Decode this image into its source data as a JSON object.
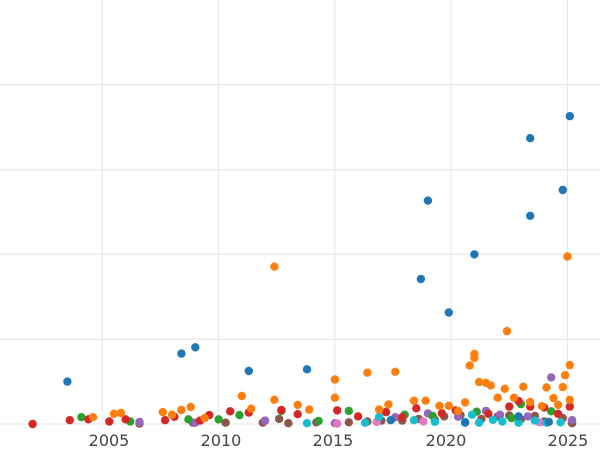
{
  "chart_data": {
    "type": "scatter",
    "title": "",
    "xlabel": "",
    "ylabel": "",
    "xlim": [
      2000.6,
      2026.4
    ],
    "ylim": [
      0,
      100
    ],
    "grid": true,
    "x_ticks": [
      2005,
      2010,
      2015,
      2020,
      2025
    ],
    "x_tick_labels": [
      "2005",
      "2010",
      "2015",
      "2020",
      "2025"
    ],
    "y_grid": [
      0,
      20,
      40,
      60,
      80
    ],
    "colors": {
      "blue": "#1f77b4",
      "orange": "#ff7f0e",
      "green": "#2ca02c",
      "red": "#d62728",
      "purple": "#9467bd",
      "brown": "#8c564b",
      "pink": "#e377c2",
      "cyan": "#17becf",
      "grid": "#e5e5e5",
      "axis_text": "#444444"
    },
    "series": [
      {
        "color_key": "blue",
        "points": [
          [
            2003.5,
            10.0
          ],
          [
            2008.4,
            16.6
          ],
          [
            2009.0,
            18.1
          ],
          [
            2011.3,
            12.5
          ],
          [
            2013.8,
            12.9
          ],
          [
            2018.7,
            34.2
          ],
          [
            2019.0,
            52.7
          ],
          [
            2019.9,
            26.3
          ],
          [
            2021.0,
            40.0
          ],
          [
            2023.4,
            49.1
          ],
          [
            2023.4,
            67.4
          ],
          [
            2024.8,
            55.2
          ],
          [
            2025.1,
            72.6
          ],
          [
            2024.2,
            0.5
          ],
          [
            2022.9,
            1.8
          ],
          [
            2020.6,
            0.3
          ],
          [
            2017.4,
            0.9
          ]
        ]
      },
      {
        "color_key": "orange",
        "points": [
          [
            2012.4,
            37.1
          ],
          [
            2025.0,
            39.5
          ],
          [
            2022.4,
            21.9
          ],
          [
            2021.0,
            16.5
          ],
          [
            2021.0,
            15.6
          ],
          [
            2020.8,
            13.8
          ],
          [
            2025.1,
            13.9
          ],
          [
            2024.9,
            11.5
          ],
          [
            2016.4,
            12.1
          ],
          [
            2017.6,
            12.3
          ],
          [
            2015.0,
            10.5
          ],
          [
            2011.0,
            6.6
          ],
          [
            2012.4,
            5.7
          ],
          [
            2015.0,
            6.2
          ],
          [
            2004.6,
            1.6
          ],
          [
            2005.5,
            2.4
          ],
          [
            2005.8,
            2.6
          ],
          [
            2007.6,
            2.8
          ],
          [
            2008.0,
            2.2
          ],
          [
            2008.4,
            3.3
          ],
          [
            2008.8,
            4.0
          ],
          [
            2009.4,
            1.4
          ],
          [
            2011.4,
            3.6
          ],
          [
            2013.4,
            4.5
          ],
          [
            2013.9,
            3.4
          ],
          [
            2016.9,
            3.4
          ],
          [
            2017.3,
            4.6
          ],
          [
            2018.4,
            5.5
          ],
          [
            2018.9,
            5.5
          ],
          [
            2019.5,
            4.3
          ],
          [
            2020.6,
            5.1
          ],
          [
            2021.2,
            9.9
          ],
          [
            2021.5,
            9.7
          ],
          [
            2021.7,
            9.1
          ],
          [
            2022.0,
            6.2
          ],
          [
            2022.3,
            8.3
          ],
          [
            2022.7,
            6.2
          ],
          [
            2023.1,
            8.8
          ],
          [
            2023.4,
            5.2
          ],
          [
            2023.9,
            4.2
          ],
          [
            2024.1,
            8.6
          ],
          [
            2024.4,
            6.1
          ],
          [
            2024.8,
            8.7
          ],
          [
            2025.1,
            5.7
          ],
          [
            2024.6,
            4.5
          ],
          [
            2020.3,
            3.1
          ],
          [
            2019.9,
            4.3
          ]
        ]
      },
      {
        "color_key": "green",
        "points": [
          [
            2004.1,
            1.6
          ],
          [
            2010.0,
            1.1
          ],
          [
            2010.9,
            2.1
          ],
          [
            2012.7,
            3.1
          ],
          [
            2015.6,
            3.1
          ],
          [
            2018.0,
            2.2
          ],
          [
            2021.1,
            2.9
          ],
          [
            2023.0,
            4.7
          ],
          [
            2022.6,
            1.4
          ],
          [
            2024.3,
            3.0
          ],
          [
            2019.2,
            1.9
          ],
          [
            2014.3,
            0.7
          ],
          [
            2006.2,
            0.6
          ],
          [
            2008.7,
            1.1
          ]
        ]
      },
      {
        "color_key": "red",
        "points": [
          [
            2002.0,
            0.0
          ],
          [
            2003.6,
            0.9
          ],
          [
            2004.4,
            1.1
          ],
          [
            2005.3,
            0.6
          ],
          [
            2006.0,
            1.1
          ],
          [
            2007.7,
            0.9
          ],
          [
            2008.1,
            1.7
          ],
          [
            2009.6,
            2.1
          ],
          [
            2010.5,
            3.0
          ],
          [
            2011.3,
            2.7
          ],
          [
            2012.7,
            3.3
          ],
          [
            2013.4,
            2.3
          ],
          [
            2015.1,
            3.2
          ],
          [
            2016.0,
            1.8
          ],
          [
            2017.2,
            2.8
          ],
          [
            2018.5,
            3.7
          ],
          [
            2019.6,
            2.5
          ],
          [
            2020.2,
            3.2
          ],
          [
            2021.6,
            2.4
          ],
          [
            2022.5,
            4.1
          ],
          [
            2022.9,
            5.4
          ],
          [
            2023.4,
            4.1
          ],
          [
            2024.0,
            3.9
          ],
          [
            2024.6,
            2.4
          ],
          [
            2025.1,
            4.1
          ],
          [
            2017.9,
            1.6
          ],
          [
            2009.2,
            0.8
          ]
        ]
      },
      {
        "color_key": "purple",
        "points": [
          [
            2024.3,
            11.0
          ],
          [
            2006.6,
            0.5
          ],
          [
            2009.0,
            0.3
          ],
          [
            2012.0,
            0.8
          ],
          [
            2017.6,
            1.6
          ],
          [
            2019.0,
            2.5
          ],
          [
            2021.5,
            3.1
          ],
          [
            2022.1,
            2.2
          ],
          [
            2023.3,
            1.8
          ],
          [
            2025.2,
            0.9
          ],
          [
            2020.3,
            1.7
          ],
          [
            2015.0,
            0.2
          ]
        ]
      },
      {
        "color_key": "brown",
        "points": [
          [
            2006.6,
            0.1
          ],
          [
            2010.3,
            0.3
          ],
          [
            2011.9,
            0.3
          ],
          [
            2013.0,
            0.2
          ],
          [
            2014.2,
            0.4
          ],
          [
            2015.6,
            0.4
          ],
          [
            2016.4,
            0.6
          ],
          [
            2017.0,
            0.8
          ],
          [
            2017.9,
            0.8
          ],
          [
            2018.6,
            1.2
          ],
          [
            2019.3,
            1.0
          ],
          [
            2019.7,
            1.8
          ],
          [
            2020.4,
            2.1
          ],
          [
            2021.3,
            1.2
          ],
          [
            2022.0,
            1.8
          ],
          [
            2022.5,
            2.0
          ],
          [
            2023.0,
            1.1
          ],
          [
            2023.6,
            1.9
          ],
          [
            2024.0,
            0.6
          ],
          [
            2024.8,
            1.4
          ],
          [
            2025.2,
            0.2
          ],
          [
            2008.9,
            0.3
          ],
          [
            2012.6,
            1.2
          ]
        ]
      },
      {
        "color_key": "pink",
        "points": [
          [
            2015.1,
            0.1
          ],
          [
            2016.8,
            0.5
          ],
          [
            2018.8,
            0.6
          ],
          [
            2023.8,
            0.4
          ]
        ]
      },
      {
        "color_key": "cyan",
        "points": [
          [
            2013.8,
            0.2
          ],
          [
            2016.3,
            0.3
          ],
          [
            2016.9,
            1.7
          ],
          [
            2018.4,
            0.9
          ],
          [
            2019.3,
            0.5
          ],
          [
            2020.6,
            0.5
          ],
          [
            2021.2,
            0.3
          ],
          [
            2021.8,
            1.0
          ],
          [
            2022.2,
            0.6
          ],
          [
            2022.9,
            0.3
          ],
          [
            2023.6,
            0.8
          ],
          [
            2024.1,
            0.3
          ],
          [
            2024.7,
            0.4
          ],
          [
            2020.9,
            2.2
          ]
        ]
      }
    ]
  }
}
